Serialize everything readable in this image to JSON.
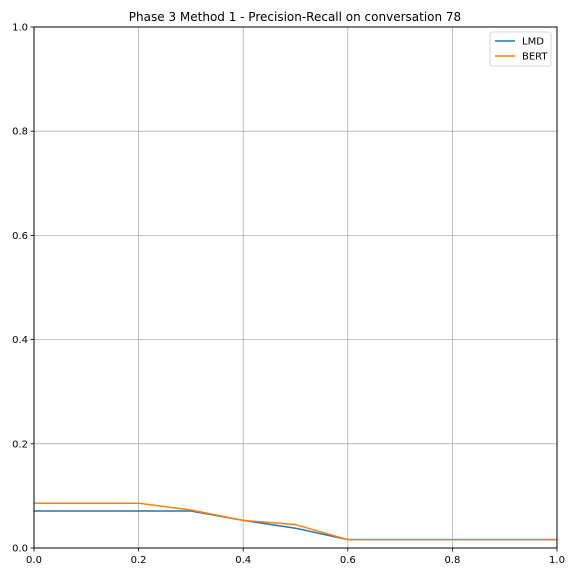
{
  "chart_data": {
    "type": "line",
    "title": "Phase 3 Method 1 - Precision-Recall on conversation 78",
    "xlabel": "",
    "ylabel": "",
    "xlim": [
      0,
      1
    ],
    "ylim": [
      0,
      1
    ],
    "grid": true,
    "legend_position": "top-right",
    "x_ticks": [
      "0.0",
      "0.2",
      "0.4",
      "0.6",
      "0.8",
      "1.0"
    ],
    "y_ticks": [
      "0.0",
      "0.2",
      "0.4",
      "0.6",
      "0.8",
      "1.0"
    ],
    "series": [
      {
        "name": "LMD",
        "color": "#1f77b4",
        "x": [
          0.0,
          0.1,
          0.2,
          0.3,
          0.4,
          0.5,
          0.6,
          0.7,
          0.8,
          0.9,
          1.0
        ],
        "y": [
          0.071,
          0.071,
          0.071,
          0.071,
          0.053,
          0.038,
          0.016,
          0.016,
          0.016,
          0.016,
          0.016
        ]
      },
      {
        "name": "BERT",
        "color": "#ff7f0e",
        "x": [
          0.0,
          0.1,
          0.2,
          0.3,
          0.4,
          0.5,
          0.6,
          0.7,
          0.8,
          0.9,
          1.0
        ],
        "y": [
          0.086,
          0.086,
          0.086,
          0.073,
          0.053,
          0.045,
          0.016,
          0.016,
          0.016,
          0.016,
          0.016
        ]
      }
    ]
  }
}
